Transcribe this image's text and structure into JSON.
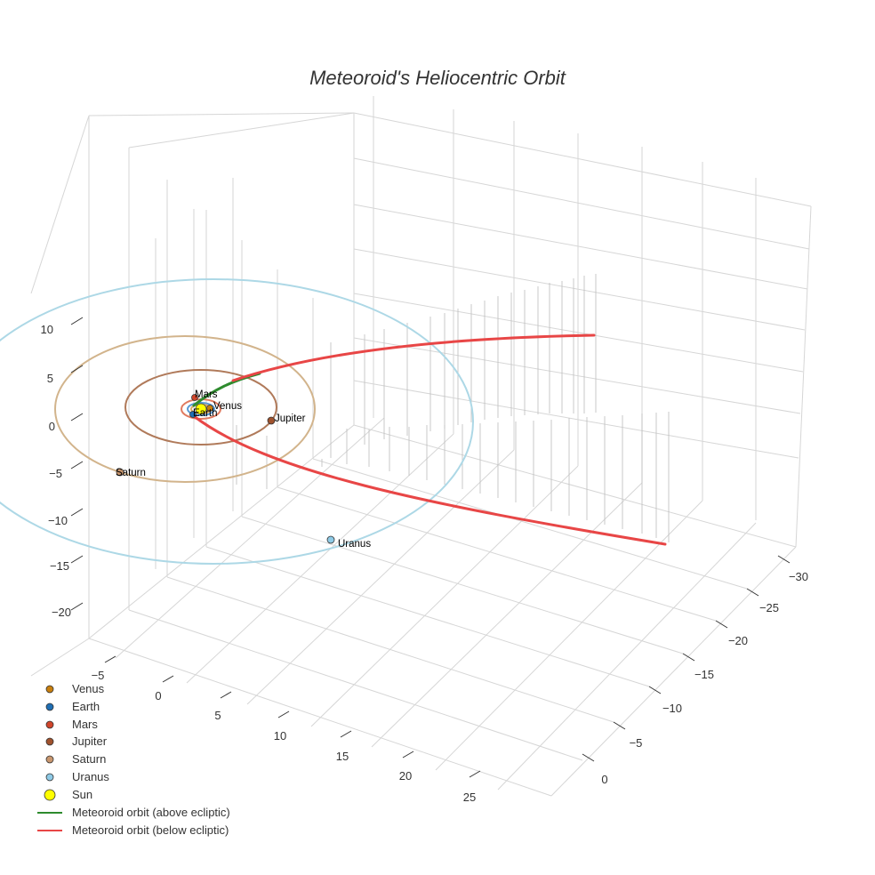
{
  "chart_data": {
    "type": "scatter3d",
    "title": "Meteoroid's Heliocentric Orbit",
    "axes": {
      "x": {
        "label": "",
        "ticks": [
          -5,
          0,
          5,
          10,
          15,
          20,
          25
        ],
        "range": [
          -8,
          28
        ]
      },
      "y": {
        "label": "",
        "ticks": [
          0,
          -5,
          -10,
          -15,
          -20,
          -25,
          -30
        ],
        "range": [
          -32,
          3
        ]
      },
      "z": {
        "label": "",
        "ticks": [
          10,
          5,
          0,
          -5,
          -10,
          -15,
          -20
        ],
        "range": [
          -24,
          14
        ]
      },
      "grid": true
    },
    "bodies": [
      {
        "name": "Venus",
        "label": "Venus",
        "color": "#c87f0e",
        "orbit_color": "#d9a864",
        "radius_au": 0.72
      },
      {
        "name": "Earth",
        "label": "Earth",
        "color": "#1f6fb4",
        "orbit_color": "#5b9bd5",
        "radius_au": 1.0
      },
      {
        "name": "Mars",
        "label": "Mars",
        "color": "#d0452b",
        "orbit_color": "#e07a5f",
        "radius_au": 1.52
      },
      {
        "name": "Jupiter",
        "label": "Jupiter",
        "color": "#a0522d",
        "orbit_color": "#b07a5a",
        "radius_au": 5.2
      },
      {
        "name": "Saturn",
        "label": "Saturn",
        "color": "#c8966e",
        "orbit_color": "#d2b48c",
        "radius_au": 9.5
      },
      {
        "name": "Uranus",
        "label": "Uranus",
        "color": "#8ecae6",
        "orbit_color": "#add8e6",
        "radius_au": 19.2
      }
    ],
    "sun": {
      "name": "Sun",
      "color": "#ffff00"
    },
    "series": [
      {
        "name": "Meteoroid orbit (above ecliptic)",
        "color": "#2e8b2e"
      },
      {
        "name": "Meteoroid orbit (below ecliptic)",
        "color": "#e84646"
      }
    ],
    "legend": {
      "position": "bottom-left",
      "entries": [
        "Venus",
        "Earth",
        "Mars",
        "Jupiter",
        "Saturn",
        "Uranus",
        "Sun",
        "Meteoroid orbit (above ecliptic)",
        "Meteoroid orbit (below ecliptic)"
      ]
    }
  }
}
